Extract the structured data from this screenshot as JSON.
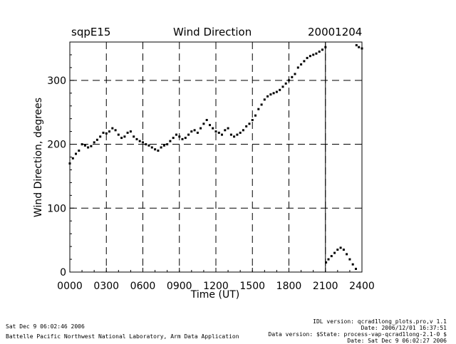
{
  "header": {
    "site": "sqpE15",
    "title": "Wind Direction",
    "date": "20001204"
  },
  "footer": {
    "created": "Sat Dec  9 06:02:46 2006",
    "lab": "Battelle Pacific Northwest National Laboratory, Arm Data Application",
    "idl_version": "IDL version: qcrad1long_plots.pro,v 1.1",
    "idl_date": "Date: 2006/12/01 16:37:51",
    "data_version": "Data version: $State: process-vap-qcrad1long-2.1-0 $",
    "data_date": "Date: Sat Dec  9 06:02:27 2006"
  },
  "colors": {
    "ink": "#000000",
    "background": "#ffffff"
  },
  "chart_data": {
    "type": "scatter",
    "title": "Wind Direction",
    "xlabel": "Time (UT)",
    "ylabel": "Wind Direction, degrees",
    "xlim": [
      0,
      2400
    ],
    "ylim": [
      0,
      360
    ],
    "x_ticks": [
      "0000",
      "0300",
      "0600",
      "0900",
      "1200",
      "1500",
      "1800",
      "2100",
      "2400"
    ],
    "y_ticks": [
      0,
      100,
      200,
      300
    ],
    "grid": "dashed",
    "vertical_marker_hour": 21.0,
    "series": [
      {
        "name": "Wind Direction",
        "points_hour_deg": [
          [
            0.0,
            170
          ],
          [
            0.25,
            178
          ],
          [
            0.5,
            185
          ],
          [
            0.75,
            190
          ],
          [
            1.0,
            200
          ],
          [
            1.25,
            198
          ],
          [
            1.5,
            195
          ],
          [
            1.75,
            197
          ],
          [
            2.0,
            203
          ],
          [
            2.25,
            207
          ],
          [
            2.5,
            212
          ],
          [
            2.75,
            218
          ],
          [
            3.0,
            217
          ],
          [
            3.25,
            220
          ],
          [
            3.5,
            225
          ],
          [
            3.75,
            222
          ],
          [
            4.0,
            215
          ],
          [
            4.25,
            210
          ],
          [
            4.5,
            212
          ],
          [
            4.75,
            218
          ],
          [
            5.0,
            220
          ],
          [
            5.25,
            212
          ],
          [
            5.5,
            208
          ],
          [
            5.75,
            205
          ],
          [
            6.0,
            203
          ],
          [
            6.25,
            200
          ],
          [
            6.5,
            198
          ],
          [
            6.75,
            195
          ],
          [
            7.0,
            192
          ],
          [
            7.25,
            190
          ],
          [
            7.5,
            195
          ],
          [
            7.75,
            198
          ],
          [
            8.0,
            200
          ],
          [
            8.25,
            205
          ],
          [
            8.5,
            210
          ],
          [
            8.75,
            215
          ],
          [
            9.0,
            212
          ],
          [
            9.25,
            208
          ],
          [
            9.5,
            210
          ],
          [
            9.75,
            215
          ],
          [
            10.0,
            220
          ],
          [
            10.25,
            222
          ],
          [
            10.5,
            218
          ],
          [
            10.75,
            225
          ],
          [
            11.0,
            232
          ],
          [
            11.25,
            238
          ],
          [
            11.5,
            230
          ],
          [
            11.75,
            225
          ],
          [
            12.0,
            220
          ],
          [
            12.25,
            218
          ],
          [
            12.5,
            215
          ],
          [
            12.75,
            222
          ],
          [
            13.0,
            225
          ],
          [
            13.25,
            215
          ],
          [
            13.5,
            212
          ],
          [
            13.75,
            215
          ],
          [
            14.0,
            218
          ],
          [
            14.25,
            222
          ],
          [
            14.5,
            228
          ],
          [
            14.75,
            232
          ],
          [
            15.0,
            238
          ],
          [
            15.25,
            245
          ],
          [
            15.5,
            255
          ],
          [
            15.75,
            262
          ],
          [
            16.0,
            270
          ],
          [
            16.25,
            275
          ],
          [
            16.5,
            278
          ],
          [
            16.75,
            280
          ],
          [
            17.0,
            282
          ],
          [
            17.25,
            285
          ],
          [
            17.5,
            290
          ],
          [
            17.75,
            295
          ],
          [
            18.0,
            300
          ],
          [
            18.25,
            305
          ],
          [
            18.5,
            310
          ],
          [
            18.75,
            320
          ],
          [
            19.0,
            325
          ],
          [
            19.25,
            330
          ],
          [
            19.5,
            335
          ],
          [
            19.75,
            338
          ],
          [
            20.0,
            340
          ],
          [
            20.25,
            342
          ],
          [
            20.5,
            345
          ],
          [
            20.75,
            348
          ],
          [
            21.0,
            352
          ],
          [
            21.05,
            15
          ],
          [
            21.25,
            20
          ],
          [
            21.5,
            25
          ],
          [
            21.75,
            30
          ],
          [
            22.0,
            35
          ],
          [
            22.25,
            38
          ],
          [
            22.5,
            35
          ],
          [
            22.75,
            28
          ],
          [
            23.0,
            20
          ],
          [
            23.25,
            12
          ],
          [
            23.5,
            5
          ],
          [
            23.55,
            355
          ],
          [
            23.75,
            352
          ],
          [
            24.0,
            350
          ]
        ]
      }
    ]
  }
}
